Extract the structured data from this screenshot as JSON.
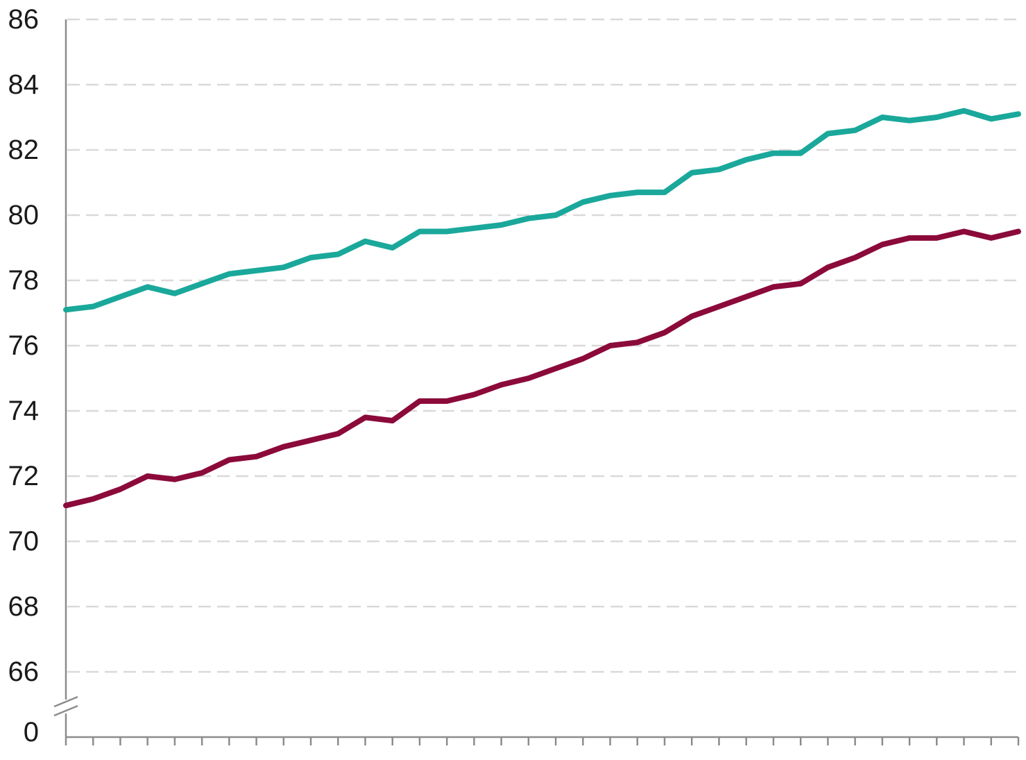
{
  "chart_data": {
    "type": "line",
    "title": "",
    "xlabel": "",
    "ylabel": "",
    "ylim": [
      66,
      86
    ],
    "axis_break": {
      "below_value": 66,
      "shown_label": "0"
    },
    "yticks": [
      "86",
      "84",
      "82",
      "80",
      "78",
      "76",
      "74",
      "72",
      "70",
      "68",
      "66",
      "0"
    ],
    "x_count": 36,
    "grid": true,
    "legend": "none",
    "series": [
      {
        "color": "#1aa89b",
        "values": [
          77.1,
          77.2,
          77.5,
          77.8,
          77.6,
          77.9,
          78.2,
          78.3,
          78.4,
          78.7,
          78.8,
          79.2,
          79.0,
          79.5,
          79.5,
          79.6,
          79.7,
          79.9,
          80.0,
          80.4,
          80.6,
          80.7,
          80.7,
          81.3,
          81.4,
          81.7,
          81.9,
          81.9,
          82.5,
          82.6,
          83.0,
          82.9,
          83.0,
          83.2,
          82.95,
          83.1
        ]
      },
      {
        "color": "#8b0a3a",
        "values": [
          71.1,
          71.3,
          71.6,
          72.0,
          71.9,
          72.1,
          72.5,
          72.6,
          72.9,
          73.1,
          73.3,
          73.8,
          73.7,
          74.3,
          74.3,
          74.5,
          74.8,
          75.0,
          75.3,
          75.6,
          76.0,
          76.1,
          76.4,
          76.9,
          77.2,
          77.5,
          77.8,
          77.9,
          78.4,
          78.7,
          79.1,
          79.3,
          79.3,
          79.5,
          79.3,
          79.5
        ]
      }
    ]
  }
}
